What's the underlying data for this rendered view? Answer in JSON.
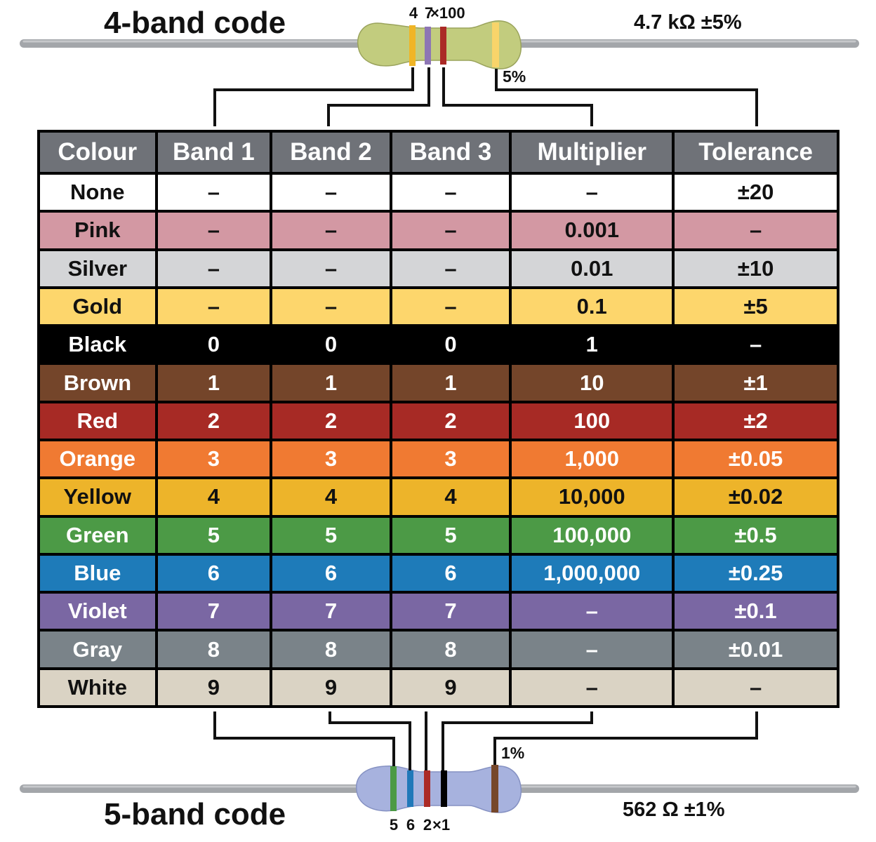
{
  "four_band": {
    "title": "4-band code",
    "value": "4.7 kΩ ±5%",
    "digits": [
      "4",
      "7",
      "×100"
    ],
    "tolerance": "5%",
    "body_color": "#c2cc7e",
    "bands": [
      "#f0b526",
      "#8d76b4",
      "#ab2a26",
      "#f8d46a"
    ]
  },
  "five_band": {
    "title": "5-band code",
    "value": "562 Ω ±1%",
    "digits": [
      "5",
      "6",
      "2",
      "×1"
    ],
    "tolerance": "1%",
    "body_color": "#a7b2de",
    "bands": [
      "#4c9a45",
      "#2078b9",
      "#ab2a26",
      "#000000",
      "#76472a"
    ]
  },
  "table": {
    "headers": [
      "Colour",
      "Band 1",
      "Band 2",
      "Band 3",
      "Multiplier",
      "Tolerance"
    ],
    "rows": [
      {
        "bg": "#ffffff",
        "fg": "#111111",
        "cells": [
          "None",
          "–",
          "–",
          "–",
          "–",
          "±20"
        ]
      },
      {
        "bg": "#d398a3",
        "fg": "#111111",
        "cells": [
          "Pink",
          "–",
          "–",
          "–",
          "0.001",
          "–"
        ]
      },
      {
        "bg": "#d4d5d7",
        "fg": "#111111",
        "cells": [
          "Silver",
          "–",
          "–",
          "–",
          "0.01",
          "±10"
        ]
      },
      {
        "bg": "#fdd66c",
        "fg": "#111111",
        "cells": [
          "Gold",
          "–",
          "–",
          "–",
          "0.1",
          "±5"
        ]
      },
      {
        "bg": "#000000",
        "fg": "#ffffff",
        "cells": [
          "Black",
          "0",
          "0",
          "0",
          "1",
          "–"
        ]
      },
      {
        "bg": "#74452a",
        "fg": "#ffffff",
        "cells": [
          "Brown",
          "1",
          "1",
          "1",
          "10",
          "±1"
        ]
      },
      {
        "bg": "#a72a25",
        "fg": "#ffffff",
        "cells": [
          "Red",
          "2",
          "2",
          "2",
          "100",
          "±2"
        ]
      },
      {
        "bg": "#f07a32",
        "fg": "#ffffff",
        "cells": [
          "Orange",
          "3",
          "3",
          "3",
          "1,000",
          "±0.05"
        ]
      },
      {
        "bg": "#edb42a",
        "fg": "#111111",
        "cells": [
          "Yellow",
          "4",
          "4",
          "4",
          "10,000",
          "±0.02"
        ]
      },
      {
        "bg": "#4c9a46",
        "fg": "#ffffff",
        "cells": [
          "Green",
          "5",
          "5",
          "5",
          "100,000",
          "±0.5"
        ]
      },
      {
        "bg": "#1e7bb9",
        "fg": "#ffffff",
        "cells": [
          "Blue",
          "6",
          "6",
          "6",
          "1,000,000",
          "±0.25"
        ]
      },
      {
        "bg": "#7a67a3",
        "fg": "#ffffff",
        "cells": [
          "Violet",
          "7",
          "7",
          "7",
          "–",
          "±0.1"
        ]
      },
      {
        "bg": "#7a8389",
        "fg": "#ffffff",
        "cells": [
          "Gray",
          "8",
          "8",
          "8",
          "–",
          "±0.01"
        ]
      },
      {
        "bg": "#dad3c4",
        "fg": "#111111",
        "cells": [
          "White",
          "9",
          "9",
          "9",
          "–",
          "–"
        ]
      }
    ]
  }
}
